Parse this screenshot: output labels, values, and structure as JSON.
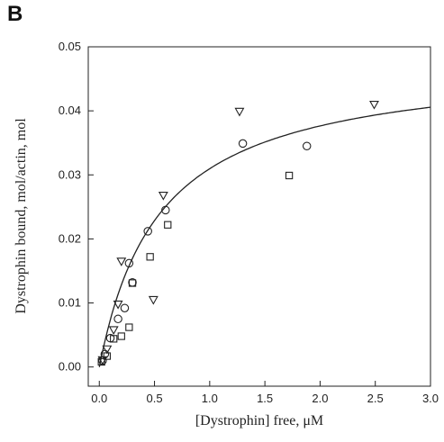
{
  "panel_label": "B",
  "chart_data": {
    "type": "scatter",
    "xlabel": "[Dystrophin] free, μM",
    "ylabel": "Dystrophin bound, mol/actin, mol",
    "xlim": [
      -0.1,
      3.0
    ],
    "ylim": [
      -0.003,
      0.05
    ],
    "xticks": [
      0.0,
      0.5,
      1.0,
      1.5,
      2.0,
      2.5,
      3.0
    ],
    "xtick_labels": [
      "0.0",
      "0.5",
      "1.0",
      "1.5",
      "2.0",
      "2.5",
      "3.0"
    ],
    "yticks": [
      0.0,
      0.01,
      0.02,
      0.03,
      0.04,
      0.05
    ],
    "ytick_labels": [
      "0.00",
      "0.01",
      "0.02",
      "0.03",
      "0.04",
      "0.05"
    ],
    "grid": false,
    "series": [
      {
        "marker": "circle",
        "x": [
          0.03,
          0.05,
          0.1,
          0.17,
          0.23,
          0.27,
          0.3,
          0.44,
          0.6,
          1.3,
          1.88
        ],
        "y": [
          0.001,
          0.002,
          0.0045,
          0.0075,
          0.0092,
          0.0162,
          0.0132,
          0.0212,
          0.0245,
          0.0349,
          0.0345
        ]
      },
      {
        "marker": "square",
        "x": [
          0.02,
          0.07,
          0.13,
          0.2,
          0.27,
          0.3,
          0.46,
          0.62,
          1.72
        ],
        "y": [
          0.0008,
          0.0017,
          0.0044,
          0.0048,
          0.0062,
          0.0131,
          0.0172,
          0.0222,
          0.0299
        ]
      },
      {
        "marker": "triangle-down",
        "x": [
          0.03,
          0.07,
          0.13,
          0.17,
          0.2,
          0.49,
          0.58,
          1.27,
          2.49
        ],
        "y": [
          0.0011,
          0.0028,
          0.0058,
          0.0098,
          0.0165,
          0.0105,
          0.0268,
          0.0399,
          0.041
        ]
      }
    ],
    "fit_curve": {
      "type": "hyperbolic",
      "bmax": 0.048,
      "kd": 0.55
    }
  }
}
